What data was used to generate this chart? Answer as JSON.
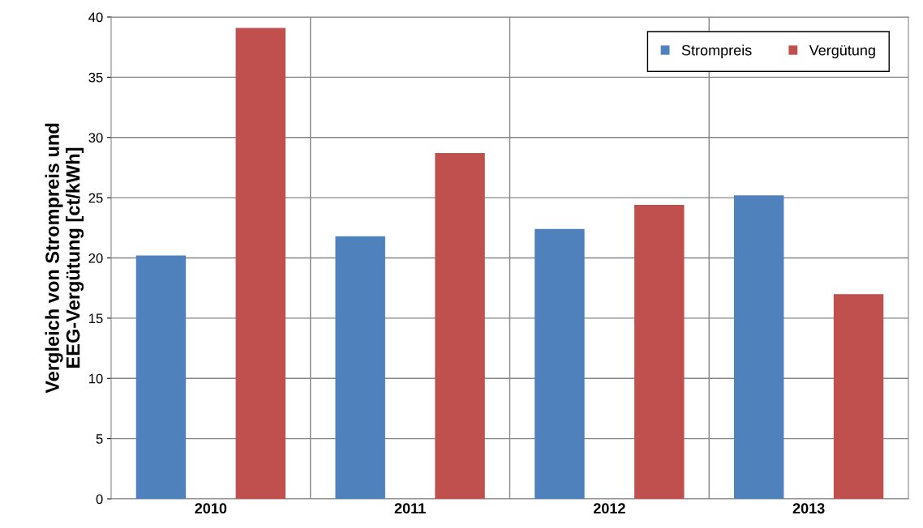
{
  "chart_data": {
    "type": "bar",
    "ylabel": "Vergleich von Strompreis und\nEEG-Vergütung [ct/kWh]",
    "categories": [
      "2010",
      "2011",
      "2012",
      "2013"
    ],
    "series": [
      {
        "name": "Strompreis",
        "color": "#4f81bd",
        "values": [
          20.2,
          21.8,
          22.4,
          25.2
        ]
      },
      {
        "name": "Vergütung",
        "color": "#c0504d",
        "values": [
          39.1,
          28.7,
          24.4,
          17.0
        ]
      }
    ],
    "ylim": [
      0,
      40
    ],
    "yticks": [
      0,
      5,
      10,
      15,
      20,
      25,
      30,
      35,
      40
    ],
    "grid": true,
    "legend": "top right"
  }
}
